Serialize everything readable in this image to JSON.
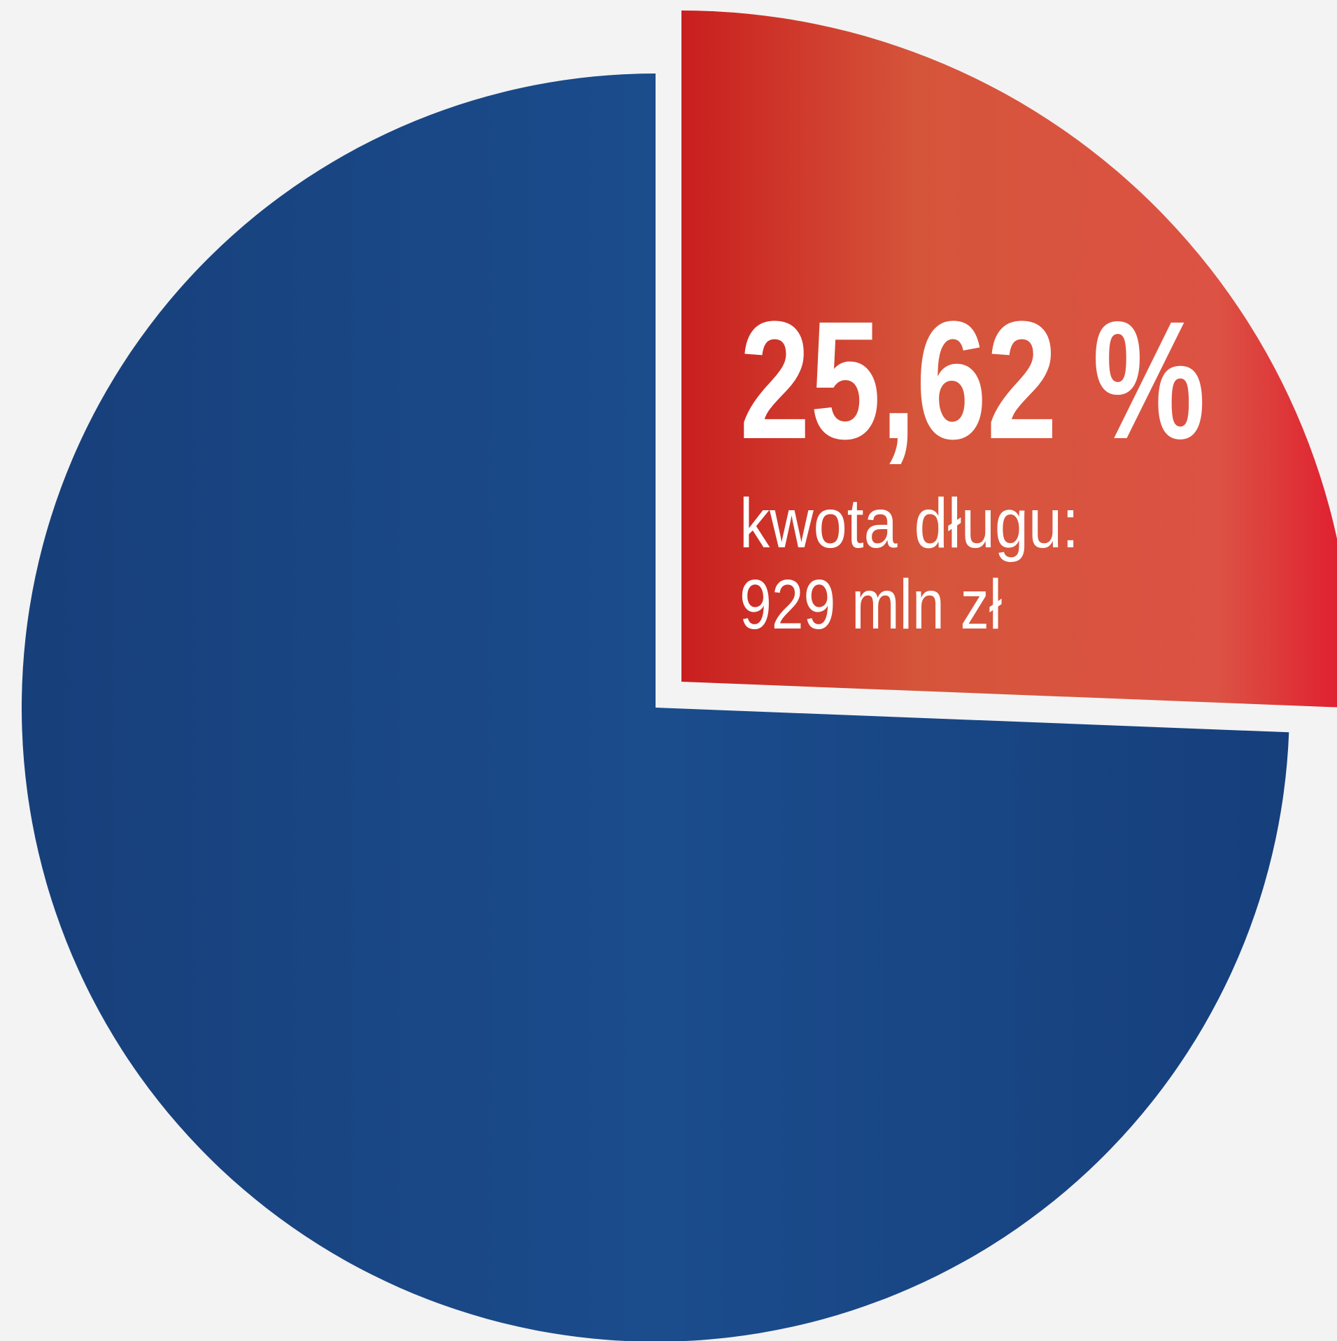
{
  "chart_data": {
    "type": "pie",
    "categories": [
      null,
      null
    ],
    "values": [
      25.62,
      74.38
    ],
    "value_labels": [
      "25,62 %",
      null
    ],
    "colors": [
      "#d9563c",
      "#1b4c8c"
    ],
    "annotations": [
      "kwota długu:",
      "929 mln zł"
    ]
  }
}
